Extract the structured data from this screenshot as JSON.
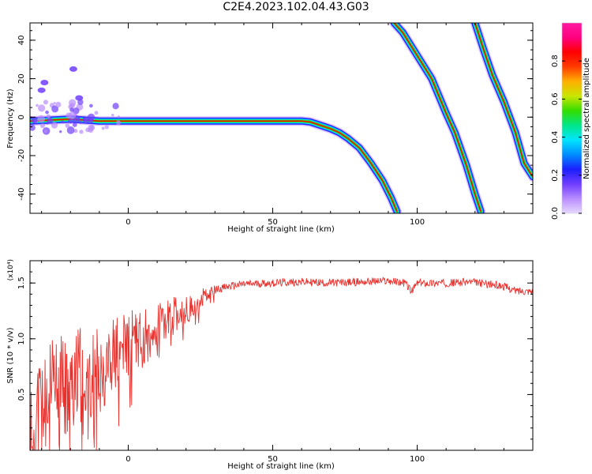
{
  "title": "C2E4.2023.102.04.43.G03",
  "colors": {
    "snr_line": "#e8322e",
    "background": "#ffffff",
    "colormap": [
      "#e6d9ff",
      "#b98cff",
      "#6f3dff",
      "#1b1fff",
      "#008cff",
      "#00e5ff",
      "#00e68a",
      "#33dd00",
      "#c8e600",
      "#ffb000",
      "#ff3c00",
      "#ff0000",
      "#ff0080",
      "#ff1aa0"
    ]
  },
  "chart_data": [
    {
      "type": "heatmap",
      "xlabel": "Height of straight line (km)",
      "ylabel": "Frequency (Hz)",
      "xlim": [
        -34,
        140
      ],
      "ylim": [
        -50,
        49
      ],
      "xticks": [
        0,
        50,
        100
      ],
      "yticks": [
        -40,
        -20,
        0,
        20,
        40
      ],
      "colorbar": {
        "label": "Normalized spectral amplitude",
        "range": [
          0,
          1
        ],
        "ticks": [
          "0.0",
          "0.2",
          "0.4",
          "0.6",
          "0.8"
        ]
      },
      "ridges": [
        {
          "x": [
            -34,
            -20,
            -10,
            0,
            10,
            20,
            30,
            40,
            50,
            55,
            60,
            63,
            66,
            70,
            73,
            76,
            80,
            84,
            88,
            91,
            93
          ],
          "y": [
            -2,
            -1,
            -2,
            -2,
            -2,
            -2,
            -2,
            -2,
            -2,
            -2,
            -2,
            -2.5,
            -4,
            -6,
            -8,
            -11,
            -16,
            -24,
            -33,
            -42,
            -49
          ]
        },
        {
          "x": [
            92,
            95,
            100,
            105,
            110,
            113,
            117,
            120,
            122
          ],
          "y": [
            49,
            44,
            32,
            20,
            2,
            -8,
            -25,
            -40,
            -49
          ]
        },
        {
          "x": [
            120,
            123,
            126,
            130,
            134,
            137,
            140
          ],
          "y": [
            49,
            35,
            22,
            8,
            -8,
            -24,
            -31
          ]
        }
      ],
      "blobs": [
        {
          "x": -29,
          "y": 18
        },
        {
          "x": -30,
          "y": 14
        },
        {
          "x": -19,
          "y": 25
        },
        {
          "x": -17,
          "y": 10
        }
      ]
    },
    {
      "type": "line",
      "xlabel": "Height of straight line (km)",
      "ylabel": "SNR (10 * v/v)",
      "scale_note": "(x10⁴)",
      "xlim": [
        -34,
        140
      ],
      "ylim": [
        0,
        1.7
      ],
      "xticks": [
        0,
        50,
        100
      ],
      "yticks": [
        "0.5",
        "1.0",
        "1.5"
      ],
      "series": [
        {
          "x": [
            -34,
            -30,
            -25,
            -20,
            -15,
            -10,
            -5,
            0,
            5,
            10,
            15,
            20,
            25,
            30,
            35,
            40,
            50,
            60,
            70,
            80,
            90,
            96,
            98,
            100,
            110,
            118,
            125,
            130,
            134,
            140
          ],
          "y": [
            0.2,
            0.35,
            0.5,
            0.6,
            0.7,
            0.72,
            0.85,
            0.95,
            1.0,
            1.1,
            1.2,
            1.25,
            1.35,
            1.44,
            1.47,
            1.49,
            1.5,
            1.51,
            1.5,
            1.51,
            1.52,
            1.5,
            1.42,
            1.5,
            1.5,
            1.51,
            1.49,
            1.47,
            1.43,
            1.43
          ]
        }
      ]
    }
  ]
}
